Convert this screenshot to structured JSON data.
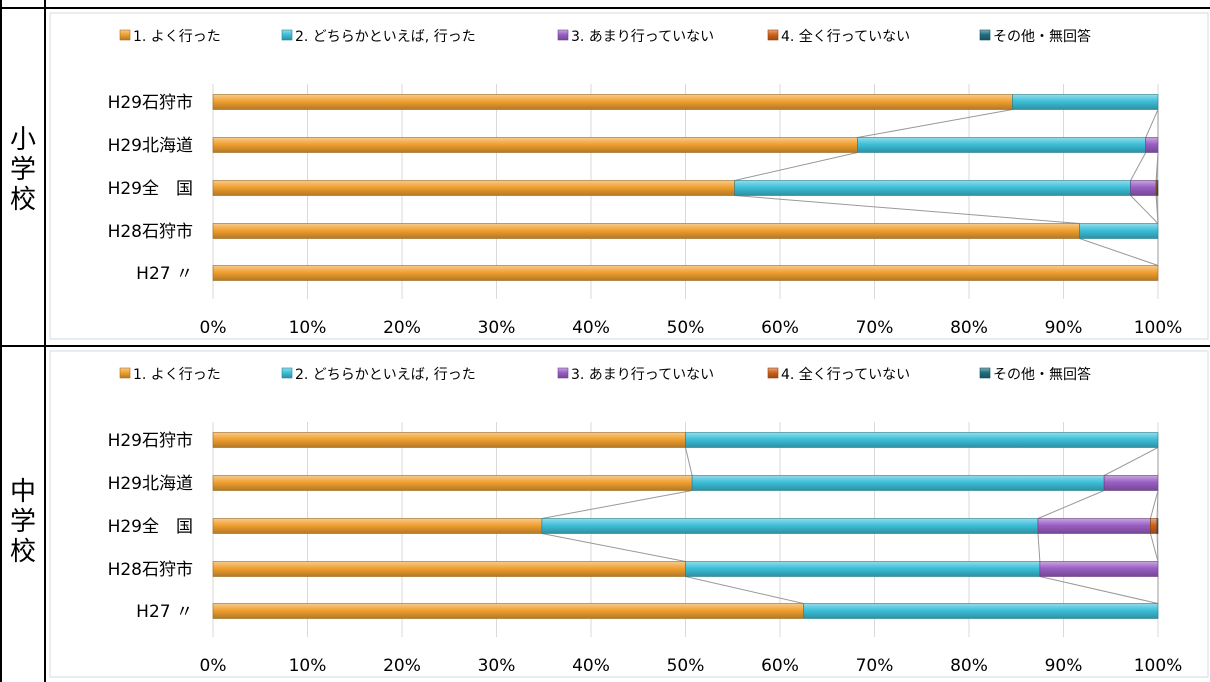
{
  "sections": [
    {
      "label_chars": [
        "小",
        "学",
        "校"
      ]
    },
    {
      "label_chars": [
        "中",
        "学",
        "校"
      ]
    }
  ],
  "legend": [
    {
      "label": "1. よく行った",
      "color": "#f0a030"
    },
    {
      "label": "2. どちらかといえば, 行った",
      "color": "#3cc0d8"
    },
    {
      "label": "3. あまり行っていない",
      "color": "#9a5fc4"
    },
    {
      "label": "4. 全く行っていない",
      "color": "#d0601a"
    },
    {
      "label": "その他・無回答",
      "color": "#1f6f80"
    }
  ],
  "chart_data": [
    {
      "type": "bar",
      "stacked": "percent",
      "orientation": "horizontal",
      "categories": [
        "H29石狩市",
        "H29北海道",
        "H29全　国",
        "H28石狩市",
        "H27 〃"
      ],
      "series": [
        {
          "name": "1. よく行った",
          "values": [
            84.6,
            68.2,
            55.2,
            91.7,
            100
          ]
        },
        {
          "name": "2. どちらかといえば, 行った",
          "values": [
            15.4,
            30.5,
            41.9,
            8.3,
            0
          ]
        },
        {
          "name": "3. あまり行っていない",
          "values": [
            0,
            1.3,
            2.7,
            0,
            0
          ]
        },
        {
          "name": "4. 全く行っていない",
          "values": [
            0,
            0,
            0.1,
            0,
            0
          ]
        },
        {
          "name": "その他・無回答",
          "values": [
            0,
            0,
            0.1,
            0,
            0
          ]
        }
      ],
      "xticks": [
        "0%",
        "10%",
        "20%",
        "30%",
        "40%",
        "50%",
        "60%",
        "70%",
        "80%",
        "90%",
        "100%"
      ],
      "xlim": [
        0,
        100
      ],
      "grid": true,
      "legend_position": "top"
    },
    {
      "type": "bar",
      "stacked": "percent",
      "orientation": "horizontal",
      "categories": [
        "H29石狩市",
        "H29北海道",
        "H29全　国",
        "H28石狩市",
        "H27 〃"
      ],
      "series": [
        {
          "name": "1. よく行った",
          "values": [
            50.0,
            50.7,
            34.8,
            50.0,
            62.5
          ]
        },
        {
          "name": "2. どちらかといえば, 行った",
          "values": [
            50.0,
            43.6,
            52.5,
            37.5,
            37.5
          ]
        },
        {
          "name": "3. あまり行っていない",
          "values": [
            0,
            5.7,
            11.9,
            12.5,
            0
          ]
        },
        {
          "name": "4. 全く行っていない",
          "values": [
            0,
            0,
            0.7,
            0,
            0
          ]
        },
        {
          "name": "その他・無回答",
          "values": [
            0,
            0,
            0.1,
            0,
            0
          ]
        }
      ],
      "xticks": [
        "0%",
        "10%",
        "20%",
        "30%",
        "40%",
        "50%",
        "60%",
        "70%",
        "80%",
        "90%",
        "100%"
      ],
      "xlim": [
        0,
        100
      ],
      "grid": true,
      "legend_position": "top"
    }
  ]
}
